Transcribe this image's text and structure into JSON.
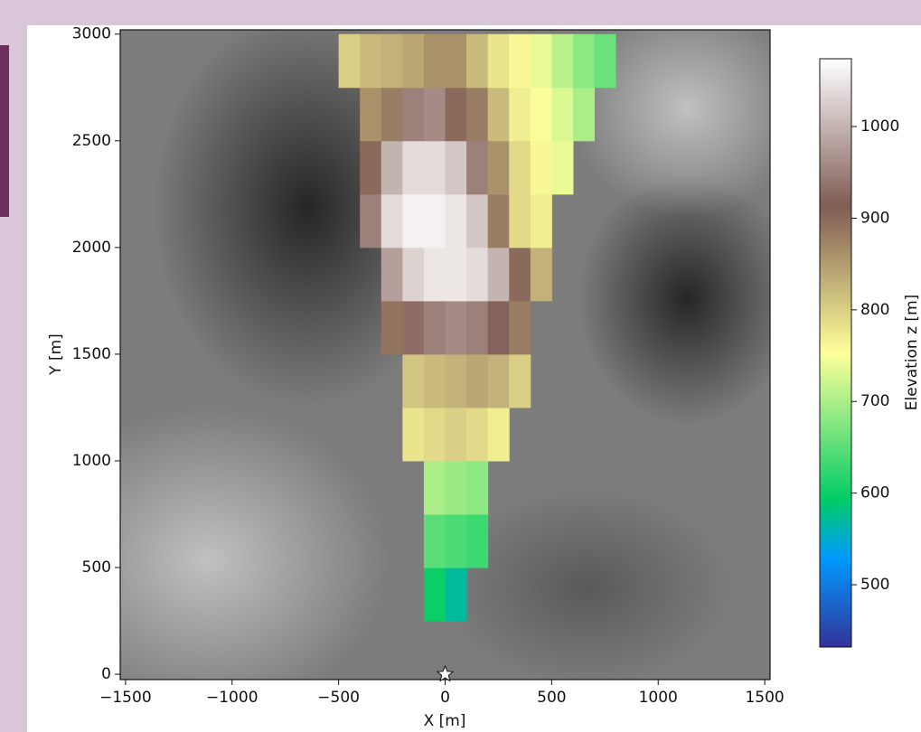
{
  "chart_data": {
    "type": "heatmap",
    "xlabel": "X [m]",
    "ylabel": "Y [m]",
    "xlim": [
      -1525,
      1525
    ],
    "ylim": [
      -25,
      3020
    ],
    "xticks": [
      {
        "value": -1500,
        "label": "−1500"
      },
      {
        "value": -1000,
        "label": "−1000"
      },
      {
        "value": -500,
        "label": "−500"
      },
      0,
      500,
      1000,
      1500
    ],
    "yticks": [
      0,
      500,
      1000,
      1500,
      2000,
      2500,
      3000
    ],
    "x": [
      -450,
      -350,
      -250,
      -150,
      -50,
      50,
      150,
      250,
      350,
      450,
      550,
      650,
      750
    ],
    "y": [
      375,
      625,
      875,
      1125,
      1375,
      1625,
      1875,
      2125,
      2375,
      2625,
      2875
    ],
    "values": [
      [
        null,
        null,
        null,
        null,
        600,
        570,
        null,
        null,
        null,
        null,
        null,
        null,
        null
      ],
      [
        null,
        null,
        null,
        null,
        650,
        640,
        630,
        null,
        null,
        null,
        null,
        null,
        null
      ],
      [
        null,
        null,
        null,
        null,
        700,
        690,
        680,
        null,
        null,
        null,
        null,
        null,
        null
      ],
      [
        null,
        null,
        null,
        780,
        790,
        800,
        790,
        770,
        null,
        null,
        null,
        null,
        null
      ],
      [
        null,
        null,
        null,
        810,
        820,
        830,
        840,
        830,
        800,
        null,
        null,
        null,
        null
      ],
      [
        null,
        null,
        890,
        930,
        950,
        960,
        950,
        920,
        880,
        null,
        null,
        null,
        null
      ],
      [
        null,
        null,
        980,
        1030,
        1050,
        1050,
        1040,
        1000,
        900,
        830,
        null,
        null,
        null
      ],
      [
        null,
        950,
        1040,
        1060,
        1060,
        1050,
        1020,
        880,
        790,
        770,
        null,
        null,
        null
      ],
      [
        null,
        900,
        1000,
        1040,
        1040,
        1020,
        950,
        860,
        790,
        760,
        740,
        null,
        null
      ],
      [
        null,
        860,
        880,
        950,
        960,
        900,
        880,
        820,
        770,
        750,
        730,
        700,
        null
      ],
      [
        800,
        820,
        830,
        840,
        860,
        860,
        820,
        780,
        760,
        740,
        710,
        680,
        660
      ]
    ],
    "colorbar": {
      "label": "Elevation z [m]",
      "clim": [
        432,
        1074
      ],
      "ticks": [
        500,
        600,
        700,
        800,
        900,
        1000
      ],
      "cmap": "terrain"
    },
    "marker": {
      "x": 0,
      "y": 0,
      "symbol": "star"
    }
  }
}
